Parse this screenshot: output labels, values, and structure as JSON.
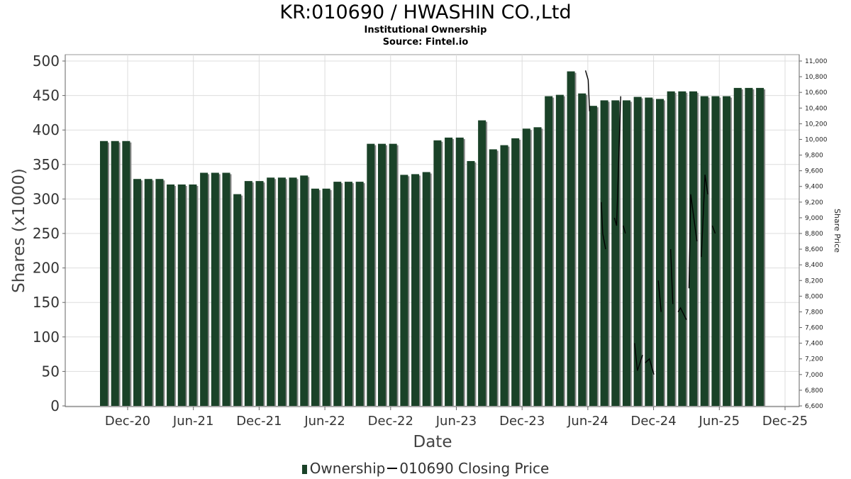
{
  "header": {
    "title": "KR:010690 / HWASHIN CO.,Ltd",
    "subtitle": "Institutional Ownership",
    "source": "Source: Fintel.io"
  },
  "legend": {
    "ownership_label": "Ownership",
    "price_label": "010690 Closing Price"
  },
  "colors": {
    "bar": "#1a4228",
    "bar_shadow": "#8a8a8a",
    "price_line": "#000000",
    "grid": "#dddddd"
  },
  "chart_data": {
    "type": "bar",
    "xlabel": "Date",
    "ylabel": "Shares (x1000)",
    "y2label": "Share Price",
    "ylim": [
      0,
      500
    ],
    "y2lim": [
      6600,
      11000
    ],
    "y_ticks": [
      0,
      50,
      100,
      150,
      200,
      250,
      300,
      350,
      400,
      450,
      500
    ],
    "y2_ticks": [
      "6,600",
      "6,800",
      "7,000",
      "7,200",
      "7,400",
      "7,600",
      "7,800",
      "8,000",
      "8,200",
      "8,400",
      "8,600",
      "8,800",
      "9,000",
      "9,200",
      "9,400",
      "9,600",
      "9,800",
      "10,000",
      "10,200",
      "10,400",
      "10,600",
      "10,800",
      "11,000"
    ],
    "x_ticks": [
      "Dec-20",
      "Jun-21",
      "Dec-21",
      "Jun-22",
      "Dec-22",
      "Jun-23",
      "Dec-23",
      "Jun-24",
      "Dec-24",
      "Jun-25",
      "Dec-25"
    ],
    "grid": true,
    "series": [
      {
        "name": "Ownership",
        "type": "bar",
        "values": [
          384,
          384,
          384,
          329,
          329,
          329,
          321,
          321,
          321,
          338,
          338,
          338,
          307,
          326,
          326,
          331,
          331,
          331,
          334,
          315,
          315,
          325,
          325,
          325,
          380,
          380,
          380,
          335,
          336,
          339,
          385,
          389,
          389,
          355,
          414,
          372,
          378,
          388,
          402,
          404,
          449,
          451,
          485,
          453,
          435,
          443,
          443,
          443,
          448,
          447,
          445,
          456,
          456,
          456,
          449,
          449,
          449,
          461,
          461,
          461
        ]
      },
      {
        "name": "010690 Closing Price",
        "type": "line",
        "points": [
          [
            "2024-05-25",
            10880
          ],
          [
            "2024-06-02",
            10760
          ],
          [
            "2024-06-06",
            10360
          ],
          [
            "2024-07-08",
            9200
          ],
          [
            "2024-07-12",
            8800
          ],
          [
            "2024-07-20",
            8600
          ],
          [
            "2024-08-14",
            9000
          ],
          [
            "2024-08-20",
            8900
          ],
          [
            "2024-09-01",
            10550
          ],
          [
            "2024-09-08",
            8900
          ],
          [
            "2024-09-14",
            8800
          ],
          [
            "2024-10-09",
            7400
          ],
          [
            "2024-10-17",
            7050
          ],
          [
            "2024-11-01",
            7250
          ],
          [
            "2024-11-08",
            7150
          ],
          [
            "2024-11-20",
            7200
          ],
          [
            "2024-12-02",
            7000
          ],
          [
            "2024-12-14",
            8200
          ],
          [
            "2024-12-22",
            7800
          ],
          [
            "2025-01-18",
            8600
          ],
          [
            "2025-01-24",
            7900
          ],
          [
            "2025-02-08",
            7800
          ],
          [
            "2025-02-15",
            7850
          ],
          [
            "2025-03-01",
            7700
          ],
          [
            "2025-03-08",
            8100
          ],
          [
            "2025-03-13",
            9300
          ],
          [
            "2025-03-30",
            8700
          ],
          [
            "2025-04-12",
            8500
          ],
          [
            "2025-04-22",
            9550
          ],
          [
            "2025-04-30",
            9300
          ],
          [
            "2025-05-12",
            8900
          ],
          [
            "2025-05-20",
            8800
          ]
        ]
      }
    ]
  }
}
